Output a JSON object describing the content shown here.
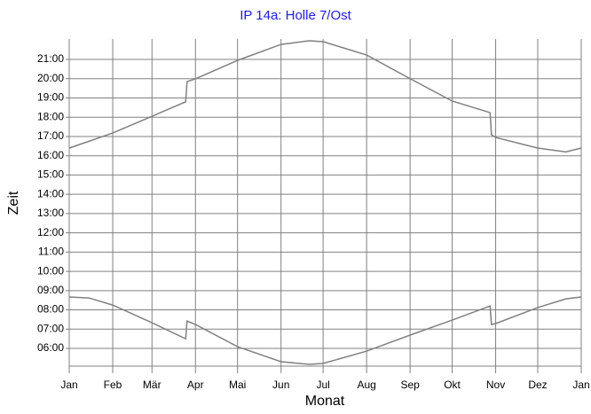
{
  "chart_data": {
    "type": "line",
    "title": "IP 14a: Holle 7/Ost",
    "x_label": "Monat",
    "y_label": "Zeit",
    "x": [
      0,
      14,
      31,
      59,
      83,
      84,
      90,
      120,
      151,
      171,
      181,
      212,
      243,
      273,
      300,
      301,
      304,
      334,
      354,
      365
    ],
    "series": [
      {
        "color": "#808080",
        "values": [
          16.4,
          16.75,
          17.18,
          18.05,
          18.8,
          19.85,
          19.99,
          20.95,
          21.78,
          21.97,
          21.92,
          21.23,
          20.0,
          18.84,
          18.24,
          17.09,
          16.95,
          16.4,
          16.2,
          16.4
        ]
      },
      {
        "color": "#808080",
        "values": [
          8.67,
          8.62,
          8.25,
          7.33,
          6.5,
          7.42,
          7.24,
          6.09,
          5.31,
          5.17,
          5.22,
          5.86,
          6.69,
          7.47,
          8.2,
          7.24,
          7.29,
          8.12,
          8.57,
          8.67
        ]
      }
    ],
    "xlim": [
      0,
      365
    ],
    "xticks": [
      {
        "value": 0,
        "label": "Jan"
      },
      {
        "value": 31,
        "label": "Feb"
      },
      {
        "value": 59,
        "label": "Mär"
      },
      {
        "value": 90,
        "label": "Apr"
      },
      {
        "value": 120,
        "label": "Mai"
      },
      {
        "value": 151,
        "label": "Jun"
      },
      {
        "value": 181,
        "label": "Jul"
      },
      {
        "value": 212,
        "label": "Aug"
      },
      {
        "value": 243,
        "label": "Sep"
      },
      {
        "value": 273,
        "label": "Okt"
      },
      {
        "value": 304,
        "label": "Nov"
      },
      {
        "value": 334,
        "label": "Dez"
      },
      {
        "value": 365,
        "label": "Jan"
      }
    ],
    "ylim": [
      5.08,
      22.06
    ],
    "yticks": [
      {
        "value": 6,
        "label": "06:00"
      },
      {
        "value": 7,
        "label": "07:00"
      },
      {
        "value": 8,
        "label": "08:00"
      },
      {
        "value": 9,
        "label": "09:00"
      },
      {
        "value": 10,
        "label": "10:00"
      },
      {
        "value": 11,
        "label": "11:00"
      },
      {
        "value": 12,
        "label": "12:00"
      },
      {
        "value": 13,
        "label": "13:00"
      },
      {
        "value": 14,
        "label": "14:00"
      },
      {
        "value": 15,
        "label": "15:00"
      },
      {
        "value": 16,
        "label": "16:00"
      },
      {
        "value": 17,
        "label": "17:00"
      },
      {
        "value": 18,
        "label": "18:00"
      },
      {
        "value": 19,
        "label": "19:00"
      },
      {
        "value": 20,
        "label": "20:00"
      },
      {
        "value": 21,
        "label": "21:00"
      }
    ],
    "grid": true
  }
}
